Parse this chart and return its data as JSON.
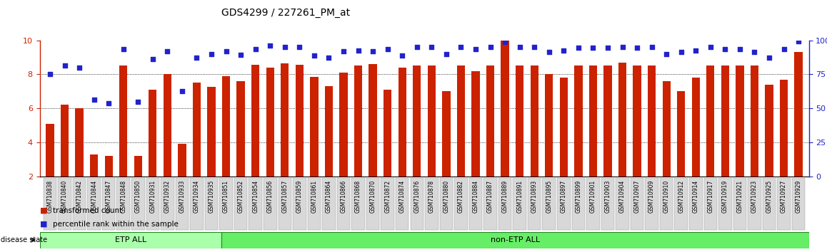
{
  "title": "GDS4299 / 227261_PM_at",
  "samples": [
    "GSM710838",
    "GSM710840",
    "GSM710842",
    "GSM710844",
    "GSM710847",
    "GSM710848",
    "GSM710850",
    "GSM710931",
    "GSM710932",
    "GSM710933",
    "GSM710934",
    "GSM710935",
    "GSM710851",
    "GSM710852",
    "GSM710854",
    "GSM710856",
    "GSM710857",
    "GSM710859",
    "GSM710861",
    "GSM710864",
    "GSM710866",
    "GSM710868",
    "GSM710870",
    "GSM710872",
    "GSM710874",
    "GSM710876",
    "GSM710878",
    "GSM710880",
    "GSM710882",
    "GSM710884",
    "GSM710887",
    "GSM710889",
    "GSM710891",
    "GSM710893",
    "GSM710895",
    "GSM710897",
    "GSM710899",
    "GSM710901",
    "GSM710903",
    "GSM710904",
    "GSM710907",
    "GSM710909",
    "GSM710910",
    "GSM710912",
    "GSM710914",
    "GSM710917",
    "GSM710919",
    "GSM710921",
    "GSM710923",
    "GSM710925",
    "GSM710927",
    "GSM710929"
  ],
  "bar_values": [
    5.1,
    6.2,
    6.0,
    3.3,
    3.2,
    8.5,
    3.2,
    7.1,
    8.0,
    3.9,
    7.5,
    7.25,
    7.9,
    7.6,
    8.55,
    8.4,
    8.65,
    8.55,
    7.85,
    7.3,
    8.1,
    8.5,
    8.6,
    7.1,
    8.4,
    8.5,
    8.5,
    7.0,
    8.5,
    8.2,
    8.5,
    10.0,
    8.5,
    8.5,
    8.0,
    7.8,
    8.5,
    8.5,
    8.5,
    8.7,
    8.5,
    8.5,
    7.6,
    7.0,
    7.8,
    8.5,
    8.5,
    8.5,
    8.5,
    7.4,
    7.7,
    9.3
  ],
  "dot_values": [
    8.0,
    8.5,
    8.4,
    6.5,
    6.3,
    9.5,
    6.4,
    8.9,
    9.35,
    7.0,
    9.0,
    9.2,
    9.35,
    9.15,
    9.5,
    9.7,
    9.6,
    9.6,
    9.1,
    9.0,
    9.35,
    9.4,
    9.35,
    9.5,
    9.1,
    9.6,
    9.6,
    9.2,
    9.6,
    9.5,
    9.6,
    9.9,
    9.6,
    9.6,
    9.3,
    9.4,
    9.55,
    9.55,
    9.55,
    9.6,
    9.55,
    9.6,
    9.2,
    9.3,
    9.4,
    9.6,
    9.5,
    9.5,
    9.3,
    9.0,
    9.5,
    9.95
  ],
  "etp_count": 12,
  "etp_label": "ETP ALL",
  "non_etp_label": "non-ETP ALL",
  "bar_color": "#cc2200",
  "dot_color": "#2222cc",
  "etp_color": "#aaffaa",
  "non_etp_color": "#66ee66",
  "ylim_left": [
    2,
    10
  ],
  "ylim_right": [
    0,
    100
  ],
  "yticks_left": [
    2,
    4,
    6,
    8,
    10
  ],
  "yticks_right": [
    0,
    25,
    50,
    75,
    100
  ],
  "grid_lines": [
    4,
    6,
    8
  ],
  "background_color": "#ffffff",
  "tick_area_color": "#d8d8d8",
  "legend_items": [
    "transformed count",
    "percentile rank within the sample"
  ],
  "disease_state_label": "disease state"
}
